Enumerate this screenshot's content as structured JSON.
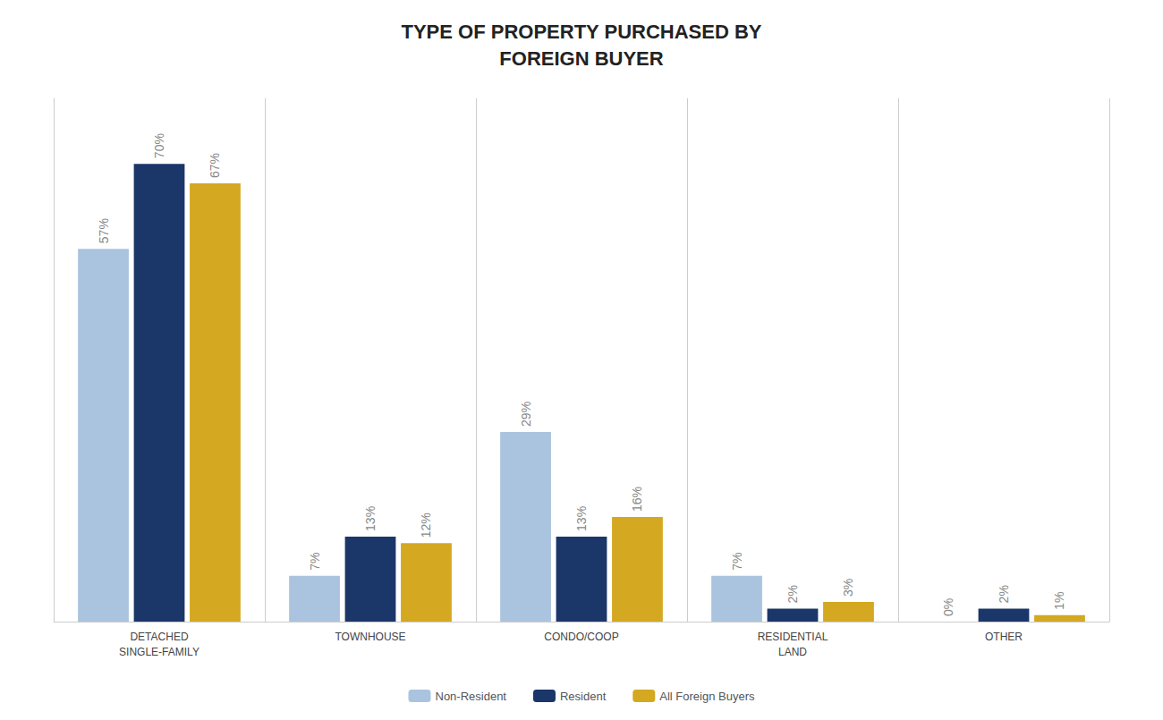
{
  "chart_data": {
    "type": "bar",
    "title": "TYPE OF PROPERTY PURCHASED BY\nFOREIGN BUYER",
    "categories": [
      "DETACHED\nSINGLE-FAMILY",
      "TOWNHOUSE",
      "CONDO/COOP",
      "RESIDENTIAL\nLAND",
      "OTHER"
    ],
    "series": [
      {
        "name": "Non-Resident",
        "color": "#aac4df",
        "values": [
          57,
          7,
          29,
          7,
          0
        ],
        "value_labels": [
          "57%",
          "7%",
          "29%",
          "7%",
          "0%"
        ]
      },
      {
        "name": "Resident",
        "color": "#1b3668",
        "values": [
          70,
          13,
          13,
          2,
          2
        ],
        "value_labels": [
          "70%",
          "13%",
          "13%",
          "2%",
          "2%"
        ]
      },
      {
        "name": "All Foreign Buyers",
        "color": "#d4a820",
        "values": [
          67,
          12,
          16,
          3,
          1
        ],
        "value_labels": [
          "67%",
          "12%",
          "16%",
          "3%",
          "1%"
        ]
      }
    ],
    "ylim": [
      0,
      80
    ],
    "tick_labels": "x",
    "data_labels": true,
    "legend": "bottom"
  }
}
